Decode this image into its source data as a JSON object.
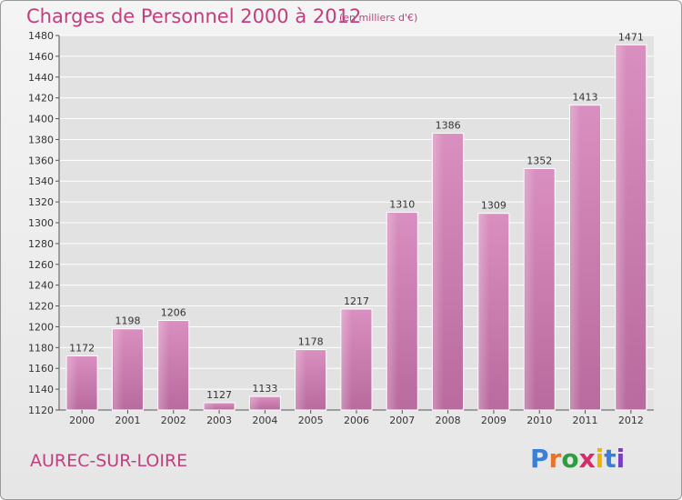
{
  "header": {
    "title": "Charges de Personnel 2000 à 2012",
    "subtitle": "(en milliers d'€)"
  },
  "footer": {
    "commune": "AUREC-SUR-LOIRE",
    "logo_text": "Proxiti",
    "logo_colors": [
      "#3a7fd6",
      "#e8732a",
      "#2c9e3f",
      "#d62c6a",
      "#f0b400",
      "#3a7fd6",
      "#7a3fc0"
    ]
  },
  "colors": {
    "bar": "#d98fbf",
    "bar_dark": "#b96a9e",
    "title": "#c0407e",
    "grid": "#ffffff",
    "text": "#333333"
  },
  "chart_data": {
    "type": "bar",
    "title": "Charges de Personnel 2000 à 2012",
    "subtitle": "(en milliers d'€)",
    "categories": [
      "2000",
      "2001",
      "2002",
      "2003",
      "2004",
      "2005",
      "2006",
      "2007",
      "2008",
      "2009",
      "2010",
      "2011",
      "2012"
    ],
    "values": [
      1172,
      1198,
      1206,
      1127,
      1133,
      1178,
      1217,
      1310,
      1386,
      1309,
      1352,
      1413,
      1471
    ],
    "ylim": [
      1120,
      1480
    ],
    "yticks": [
      1120,
      1140,
      1160,
      1180,
      1200,
      1220,
      1240,
      1260,
      1280,
      1300,
      1320,
      1340,
      1360,
      1380,
      1400,
      1420,
      1440,
      1460,
      1480
    ],
    "grid": true,
    "data_labels": true
  }
}
